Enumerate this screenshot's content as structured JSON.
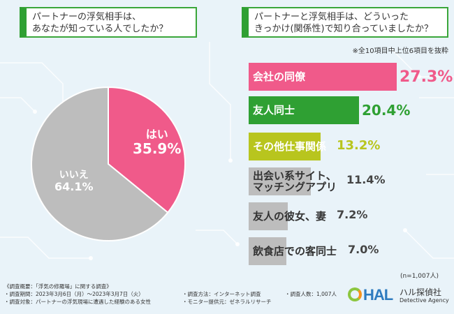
{
  "questions": {
    "q1": [
      "パートナーの浮気相手は、",
      "あなたが知っている人でしたか？"
    ],
    "q2": [
      "パートナーと浮気相手は、どういった",
      "きっかけ(関係性)で知り合っていましたか？"
    ]
  },
  "notes": {
    "top": "※全10項目中上位6項目を抜粋",
    "n": "(n=1,007人)"
  },
  "colors": {
    "pink": "#f05a8a",
    "green": "#2fa033",
    "lime": "#b8c51e",
    "gray": "#bdbdbd"
  },
  "chart_data": [
    {
      "type": "pie",
      "title": "パートナーの浮気相手は、あなたが知っている人でしたか？",
      "labels": [
        "はい",
        "いいえ"
      ],
      "values": [
        35.9,
        64.1
      ],
      "display": [
        "35.9%",
        "64.1%"
      ],
      "unit": "%"
    },
    {
      "type": "bar",
      "orientation": "horizontal",
      "title": "パートナーと浮気相手は、どういったきっかけ(関係性)で知り合っていましたか？",
      "categories": [
        "会社の同僚",
        "友人同士",
        "その他仕事関係",
        "出会い系サイト、マッチングアプリ",
        "友人の彼女、妻",
        "飲食店での客同士"
      ],
      "category_lines": [
        [
          "会社の同僚"
        ],
        [
          "友人同士"
        ],
        [
          "その他仕事関係"
        ],
        [
          "出会い系サイト、",
          "マッチングアプリ"
        ],
        [
          "友人の彼女、妻"
        ],
        [
          "飲食店での客同士"
        ]
      ],
      "values": [
        27.3,
        20.4,
        13.2,
        11.4,
        7.2,
        7.0
      ],
      "display": [
        "27.3%",
        "20.4%",
        "13.2%",
        "11.4%",
        "7.2%",
        "7.0%"
      ],
      "unit": "%"
    }
  ],
  "footer": {
    "lines_left": [
      "《調査概要：「浮気の修羅場」に関する調査》",
      "・調査期間：2023年3月6日（月）～2023年3月7日（火）",
      "・調査対象：パートナーの浮気現場に遭遇した経験のある女性"
    ],
    "lines_mid": [
      "・調査方法：インターネット調査",
      "・モニター提供元：ゼネラルリサーチ"
    ],
    "lines_right": [
      "・調査人数：1,007人"
    ]
  },
  "logo": {
    "mark": "HAL",
    "name": "ハル探偵社",
    "en": "Detective Agency"
  }
}
